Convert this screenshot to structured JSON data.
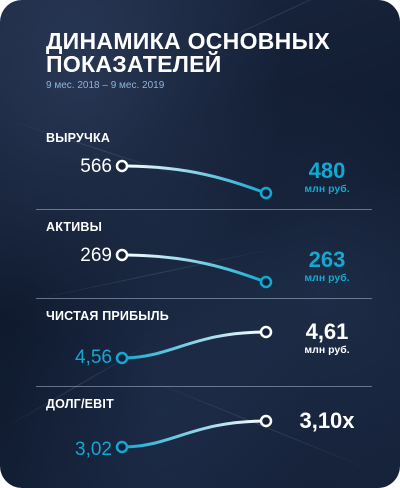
{
  "header": {
    "title": "ДИНАМИКА ОСНОВНЫХ ПОКАЗАТЕЛЕЙ",
    "subtitle": "9 мес. 2018 – 9 мес. 2019"
  },
  "colors": {
    "accent": "#13a8d0",
    "text": "#ffffff",
    "background": "#14203a"
  },
  "chart_data": {
    "type": "line",
    "title": "ДИНАМИКА ОСНОВНЫХ ПОКАЗАТЕЛЕЙ",
    "subtitle": "9 мес. 2018 – 9 мес. 2019",
    "x": [
      "9 мес. 2018",
      "9 мес. 2019"
    ],
    "series": [
      {
        "name": "ВЫРУЧКА",
        "start_label": "566",
        "end_label": "480",
        "unit": "млн руб.",
        "values": [
          566,
          480
        ],
        "trend": "down"
      },
      {
        "name": "АКТИВЫ",
        "start_label": "269",
        "end_label": "263",
        "unit": "млн руб.",
        "values": [
          269,
          263
        ],
        "trend": "down"
      },
      {
        "name": "ЧИСТАЯ ПРИБЫЛЬ",
        "start_label": "4,56",
        "end_label": "4,61",
        "unit": "млн руб.",
        "values": [
          4.56,
          4.61
        ],
        "trend": "up"
      },
      {
        "name": "ДОЛГ/EBIT",
        "start_label": "3,02",
        "end_label": "3,10x",
        "unit": "",
        "values": [
          3.02,
          3.1
        ],
        "trend": "up"
      }
    ]
  }
}
